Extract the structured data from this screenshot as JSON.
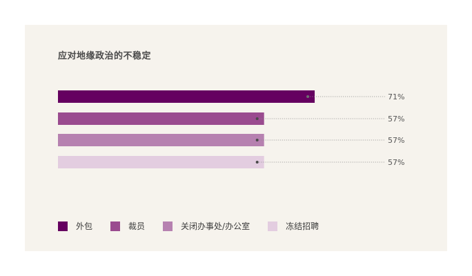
{
  "chart_data": {
    "type": "bar",
    "orientation": "horizontal",
    "title": "应对地缘政治的不稳定",
    "xlabel": "",
    "ylabel": "",
    "xlim": [
      0,
      100
    ],
    "grid": false,
    "legend_position": "bottom",
    "categories": [
      "外包",
      "裁员",
      "关闭办事处/办公室",
      "冻结招聘"
    ],
    "values": [
      71,
      57,
      57,
      57
    ],
    "value_labels": [
      "71%",
      "57%",
      "57%",
      "57%"
    ],
    "colors": [
      "#650060",
      "#9a4b8f",
      "#b681b0",
      "#e3cde0"
    ]
  }
}
